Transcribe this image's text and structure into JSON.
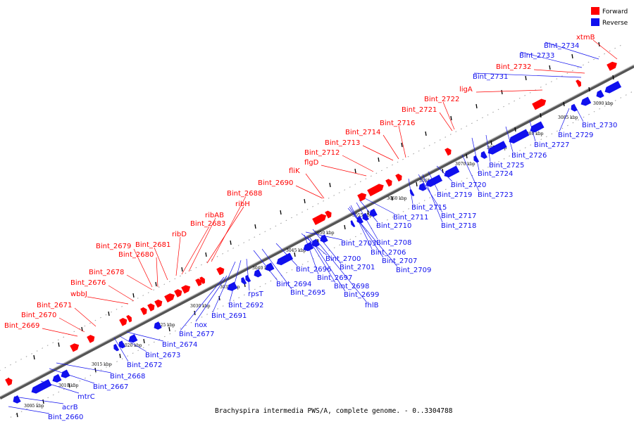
{
  "legend": [
    {
      "label": "Forward",
      "color": "#ff0000"
    },
    {
      "label": "Reverse",
      "color": "#1010ee"
    }
  ],
  "colors": {
    "forward": "#ff0000",
    "reverse": "#1010ee",
    "axis": "#888888",
    "leader_forward": "#ff0000",
    "leader_reverse": "#1010ee"
  },
  "footer": "Brachyspira intermedia PWS/A, complete genome. - 0..3304788",
  "ticks": [
    "3005 kbp",
    "3010 kbp",
    "3015 kbp",
    "3020 kbp",
    "3025 kbp",
    "3030 kbp",
    "3035 kbp",
    "3040 kbp",
    "3045 kbp",
    "3050 kbp",
    "3055 kbp",
    "3060 kbp",
    "3065 kbp",
    "3070 kbp",
    "3075 kbp",
    "3080 kbp",
    "3085 kbp",
    "3090 kbp"
  ],
  "forward_labels": [
    "xtmB",
    "Bint_2732",
    "ligA",
    "Bint_2722",
    "Bint_2721",
    "Bint_2716",
    "Bint_2714",
    "Bint_2713",
    "Bint_2712",
    "flgD",
    "fliK",
    "Bint_2690",
    "Bint_2688",
    "ribH",
    "ribAB",
    "Bint_2683",
    "ribD",
    "Bint_2681",
    "Bint_2679",
    "Bint_2680",
    "Bint_2678",
    "Bint_2676",
    "wbbJ",
    "Bint_2671",
    "Bint_2670",
    "Bint_2669"
  ],
  "reverse_labels": [
    "Bint_2734",
    "Bint_2733",
    "Bint_2731",
    "Bint_2730",
    "Bint_2729",
    "Bint_2727",
    "Bint_2726",
    "Bint_2725",
    "Bint_2724",
    "Bint_2723",
    "Bint_2720",
    "Bint_2719",
    "Bint_2717",
    "Bint_2718",
    "Bint_2715",
    "Bint_2711",
    "Bint_2710",
    "Bint_2708",
    "Bint_2706",
    "Bint_2707",
    "Bint_2709",
    "Bint_2703",
    "Bint_2700",
    "Bint_2701",
    "Bint_2696",
    "Bint_2697",
    "Bint_2698",
    "Bint_2699",
    "fhlB",
    "Bint_2694",
    "Bint_2695",
    "rpsT",
    "Bint_2692",
    "Bint_2691",
    "nox",
    "Bint_2677",
    "Bint_2674",
    "Bint_2673",
    "Bint_2672",
    "Bint_2668",
    "Bint_2667",
    "mtrC",
    "acrB",
    "Bint_2660"
  ]
}
